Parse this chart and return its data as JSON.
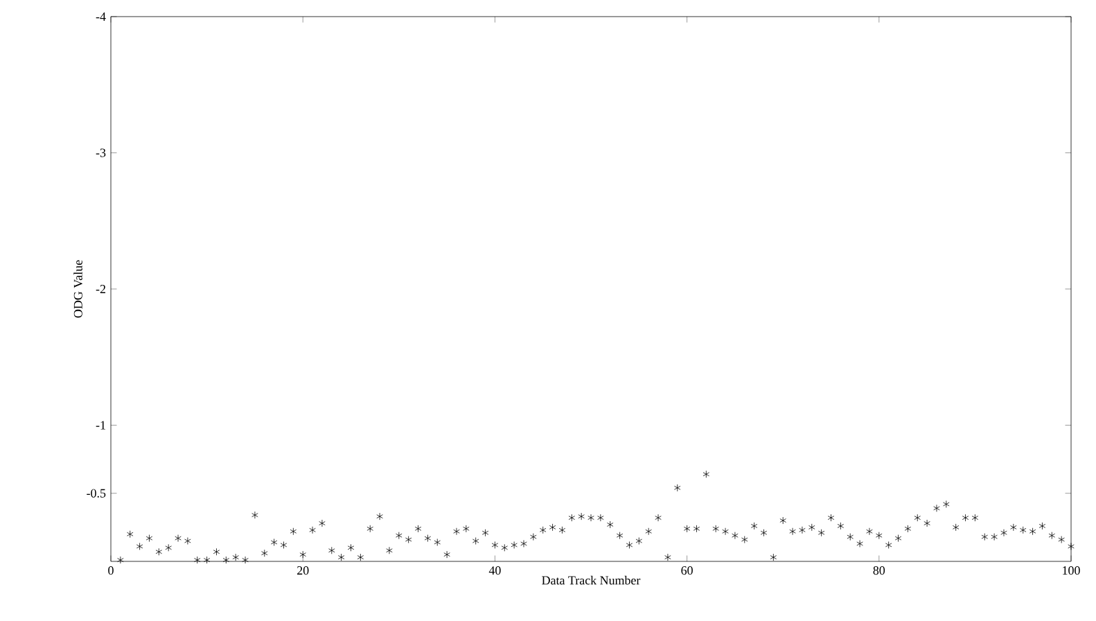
{
  "chart_data": {
    "type": "scatter",
    "xlabel": "Data Track Number",
    "ylabel": "ODG Value",
    "x": [
      1,
      2,
      3,
      4,
      5,
      6,
      7,
      8,
      9,
      10,
      11,
      12,
      13,
      14,
      15,
      16,
      17,
      18,
      19,
      20,
      21,
      22,
      23,
      24,
      25,
      26,
      27,
      28,
      29,
      30,
      31,
      32,
      33,
      34,
      35,
      36,
      37,
      38,
      39,
      40,
      41,
      42,
      43,
      44,
      45,
      46,
      47,
      48,
      49,
      50,
      51,
      52,
      53,
      54,
      55,
      56,
      57,
      58,
      59,
      60,
      61,
      62,
      63,
      64,
      65,
      66,
      67,
      68,
      69,
      70,
      71,
      72,
      73,
      74,
      75,
      76,
      77,
      78,
      79,
      80,
      81,
      82,
      83,
      84,
      85,
      86,
      87,
      88,
      89,
      90,
      91,
      92,
      93,
      94,
      95,
      96,
      97,
      98,
      99,
      100
    ],
    "values": [
      -0.01,
      -0.2,
      -0.11,
      -0.17,
      -0.07,
      -0.1,
      -0.17,
      -0.15,
      -0.01,
      -0.01,
      -0.07,
      -0.01,
      -0.03,
      -0.01,
      -0.34,
      -0.06,
      -0.14,
      -0.12,
      -0.22,
      -0.05,
      -0.23,
      -0.28,
      -0.08,
      -0.03,
      -0.1,
      -0.03,
      -0.24,
      -0.33,
      -0.08,
      -0.19,
      -0.16,
      -0.24,
      -0.17,
      -0.14,
      -0.05,
      -0.22,
      -0.24,
      -0.15,
      -0.21,
      -0.12,
      -0.1,
      -0.12,
      -0.13,
      -0.18,
      -0.23,
      -0.25,
      -0.23,
      -0.32,
      -0.33,
      -0.32,
      -0.32,
      -0.27,
      -0.19,
      -0.12,
      -0.15,
      -0.22,
      -0.32,
      -0.03,
      -0.54,
      -0.24,
      -0.24,
      -0.64,
      -0.24,
      -0.22,
      -0.19,
      -0.16,
      -0.26,
      -0.21,
      -0.03,
      -0.3,
      -0.22,
      -0.23,
      -0.25,
      -0.21,
      -0.32,
      -0.26,
      -0.18,
      -0.13,
      -0.22,
      -0.19,
      -0.12,
      -0.17,
      -0.24,
      -0.32,
      -0.28,
      -0.39,
      -0.42,
      -0.25,
      -0.32,
      -0.32,
      -0.18,
      -0.18,
      -0.21,
      -0.25,
      -0.23,
      -0.22,
      -0.26,
      -0.19,
      -0.16,
      -0.11
    ],
    "color": "#000000",
    "marker": "cross",
    "xlim": [
      0,
      100
    ],
    "xticks": [
      0,
      20,
      40,
      60,
      80,
      100
    ],
    "ylim": [
      0,
      -4
    ],
    "yticks": [
      -4,
      -3,
      -2,
      -1,
      -0.5
    ],
    "grid": false
  }
}
